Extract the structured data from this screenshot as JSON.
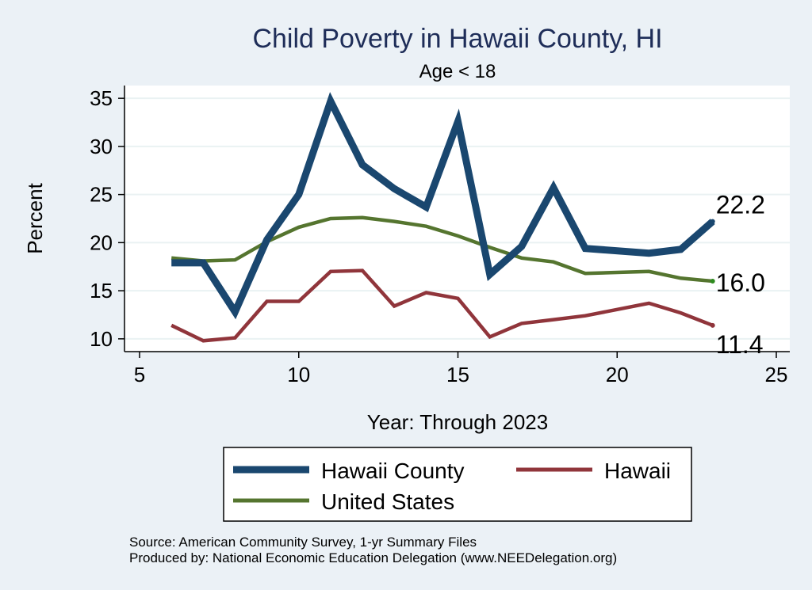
{
  "chart_data": {
    "type": "line",
    "title": "Child Poverty in Hawaii County, HI",
    "subtitle": "Age < 18",
    "xlabel": "Year: Through 2023",
    "ylabel": "Percent",
    "xlim": [
      5,
      25
    ],
    "ylim": [
      9,
      36
    ],
    "xticks": [
      5,
      10,
      15,
      20,
      25
    ],
    "yticks": [
      10,
      15,
      20,
      25,
      30,
      35
    ],
    "grid": true,
    "legend_position": "bottom",
    "series": [
      {
        "name": "Hawaii County",
        "color": "#1a476f",
        "x": [
          6,
          7,
          8,
          9,
          10,
          11,
          12,
          13,
          14,
          15,
          16,
          17,
          18,
          19,
          21,
          22,
          23
        ],
        "values": [
          17.9,
          17.9,
          12.8,
          20.3,
          25.0,
          34.7,
          28.1,
          25.6,
          23.7,
          32.6,
          16.7,
          19.6,
          25.7,
          19.4,
          18.9,
          19.3,
          22.2
        ],
        "end_label": "22.2"
      },
      {
        "name": "Hawaii",
        "color": "#90353b",
        "x": [
          6,
          7,
          8,
          9,
          10,
          11,
          12,
          13,
          14,
          15,
          16,
          17,
          18,
          19,
          21,
          22,
          23
        ],
        "values": [
          11.4,
          9.8,
          10.1,
          13.9,
          13.9,
          17.0,
          17.1,
          13.4,
          14.8,
          14.2,
          10.2,
          11.6,
          12.0,
          12.4,
          13.7,
          12.7,
          11.4
        ],
        "end_label": "11.4"
      },
      {
        "name": "United States",
        "color": "#55752f",
        "x": [
          6,
          7,
          8,
          9,
          10,
          11,
          12,
          13,
          14,
          15,
          16,
          17,
          18,
          19,
          21,
          22,
          23
        ],
        "values": [
          18.4,
          18.1,
          18.2,
          20.1,
          21.6,
          22.5,
          22.6,
          22.2,
          21.7,
          20.7,
          19.5,
          18.4,
          18.0,
          16.8,
          17.0,
          16.3,
          16.0
        ],
        "end_label": "16.0"
      }
    ]
  },
  "source": {
    "line1": "Source: American Community Survey, 1-yr Summary Files",
    "line2": "Produced by: National Economic Education Delegation (www.NEEDelegation.org)"
  }
}
